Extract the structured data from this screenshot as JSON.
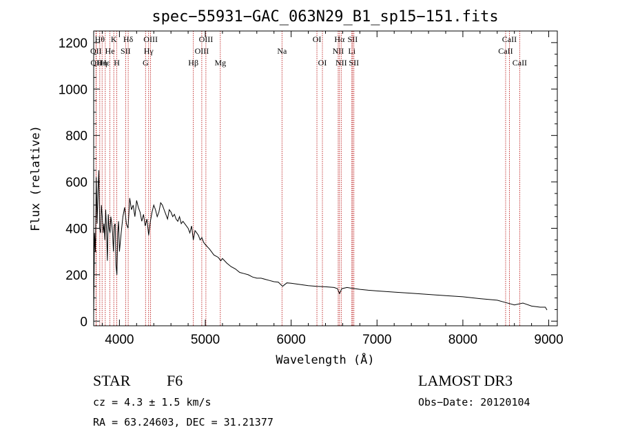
{
  "chart_data": {
    "type": "line",
    "title": "spec−55931−GAC_063N29_B1_sp15−151.fits",
    "xlabel": "Wavelength (Å)",
    "ylabel": "Flux (relative)",
    "xlim": [
      3700,
      9100
    ],
    "ylim": [
      -20,
      1250
    ],
    "x_ticks": [
      4000,
      5000,
      6000,
      7000,
      8000,
      9000
    ],
    "y_ticks": [
      0,
      200,
      400,
      600,
      800,
      1000,
      1200
    ],
    "series": [
      {
        "name": "flux",
        "x": [
          3700,
          3710,
          3720,
          3730,
          3740,
          3750,
          3760,
          3770,
          3780,
          3790,
          3800,
          3810,
          3820,
          3830,
          3840,
          3850,
          3860,
          3870,
          3880,
          3890,
          3900,
          3910,
          3920,
          3930,
          3940,
          3950,
          3960,
          3970,
          3980,
          3990,
          4000,
          4020,
          4040,
          4060,
          4080,
          4100,
          4120,
          4140,
          4160,
          4180,
          4200,
          4220,
          4240,
          4260,
          4280,
          4300,
          4320,
          4340,
          4360,
          4380,
          4400,
          4420,
          4440,
          4460,
          4480,
          4500,
          4520,
          4540,
          4560,
          4580,
          4600,
          4620,
          4640,
          4660,
          4680,
          4700,
          4720,
          4740,
          4760,
          4780,
          4800,
          4820,
          4840,
          4860,
          4880,
          4900,
          4920,
          4940,
          4960,
          4980,
          5000,
          5050,
          5100,
          5150,
          5180,
          5200,
          5250,
          5300,
          5350,
          5400,
          5450,
          5500,
          5550,
          5600,
          5650,
          5700,
          5750,
          5800,
          5850,
          5900,
          5950,
          6000,
          6100,
          6200,
          6300,
          6400,
          6500,
          6540,
          6563,
          6590,
          6650,
          6700,
          6800,
          6900,
          7000,
          7200,
          7400,
          7600,
          7800,
          8000,
          8200,
          8400,
          8500,
          8600,
          8700,
          8800,
          8900,
          8960,
          8980
        ],
        "values": [
          20,
          380,
          300,
          620,
          420,
          560,
          650,
          400,
          380,
          500,
          450,
          380,
          420,
          350,
          480,
          390,
          260,
          460,
          400,
          380,
          450,
          420,
          380,
          300,
          410,
          420,
          240,
          200,
          380,
          430,
          300,
          380,
          450,
          490,
          420,
          400,
          530,
          480,
          500,
          450,
          520,
          490,
          470,
          430,
          460,
          410,
          440,
          370,
          430,
          470,
          500,
          480,
          450,
          470,
          510,
          500,
          480,
          460,
          440,
          480,
          470,
          450,
          460,
          440,
          430,
          450,
          420,
          430,
          420,
          410,
          400,
          380,
          410,
          350,
          390,
          380,
          370,
          350,
          360,
          340,
          330,
          310,
          285,
          275,
          260,
          270,
          250,
          235,
          225,
          210,
          205,
          200,
          190,
          185,
          185,
          180,
          175,
          170,
          168,
          150,
          165,
          163,
          158,
          153,
          150,
          148,
          145,
          140,
          118,
          140,
          145,
          142,
          137,
          133,
          130,
          125,
          120,
          115,
          110,
          105,
          97,
          90,
          80,
          70,
          78,
          65,
          60,
          60,
          48
        ]
      }
    ],
    "line_markers": [
      {
        "wavelength": 3727,
        "label": "OII",
        "row": 2
      },
      {
        "wavelength": 3730,
        "label": "OII",
        "row": 3
      },
      {
        "wavelength": 3771,
        "label": "Hθ",
        "row": 1
      },
      {
        "wavelength": 3798,
        "label": "Hη",
        "row": 3
      },
      {
        "wavelength": 3835,
        "label": "Hε",
        "row": 3
      },
      {
        "wavelength": 3889,
        "label": "He",
        "row": 2
      },
      {
        "wavelength": 3934,
        "label": "K",
        "row": 1
      },
      {
        "wavelength": 3969,
        "label": "H",
        "row": 3
      },
      {
        "wavelength": 4072,
        "label": "SII",
        "row": 2
      },
      {
        "wavelength": 4102,
        "label": "Hδ",
        "row": 1
      },
      {
        "wavelength": 4304,
        "label": "G",
        "row": 3
      },
      {
        "wavelength": 4340,
        "label": "Hγ",
        "row": 2
      },
      {
        "wavelength": 4363,
        "label": "OIII",
        "row": 1
      },
      {
        "wavelength": 4861,
        "label": "Hβ",
        "row": 3
      },
      {
        "wavelength": 4959,
        "label": "OIII",
        "row": 2
      },
      {
        "wavelength": 5007,
        "label": "OIII",
        "row": 1
      },
      {
        "wavelength": 5175,
        "label": "Mg",
        "row": 3
      },
      {
        "wavelength": 5893,
        "label": "Na",
        "row": 2
      },
      {
        "wavelength": 6300,
        "label": "OI",
        "row": 1
      },
      {
        "wavelength": 6364,
        "label": "OI",
        "row": 3
      },
      {
        "wavelength": 6548,
        "label": "NII",
        "row": 2
      },
      {
        "wavelength": 6563,
        "label": "Hα",
        "row": 1
      },
      {
        "wavelength": 6583,
        "label": "NII",
        "row": 3
      },
      {
        "wavelength": 6707,
        "label": "Li",
        "row": 2
      },
      {
        "wavelength": 6716,
        "label": "SII",
        "row": 1
      },
      {
        "wavelength": 6731,
        "label": "SII",
        "row": 3
      },
      {
        "wavelength": 8498,
        "label": "CaII",
        "row": 2
      },
      {
        "wavelength": 8542,
        "label": "CaII",
        "row": 1
      },
      {
        "wavelength": 8662,
        "label": "CaII",
        "row": 3
      }
    ]
  },
  "info": {
    "class": "STAR",
    "subclass": "F6",
    "survey": "LAMOST DR3",
    "cz": "cz = 4.3 ± 1.5 km/s",
    "obs_date": "Obs−Date: 20120104",
    "radec": "RA =  63.24603, DEC =  31.21377"
  },
  "colors": {
    "line_marker": "#b40000",
    "spectrum": "#000000"
  }
}
